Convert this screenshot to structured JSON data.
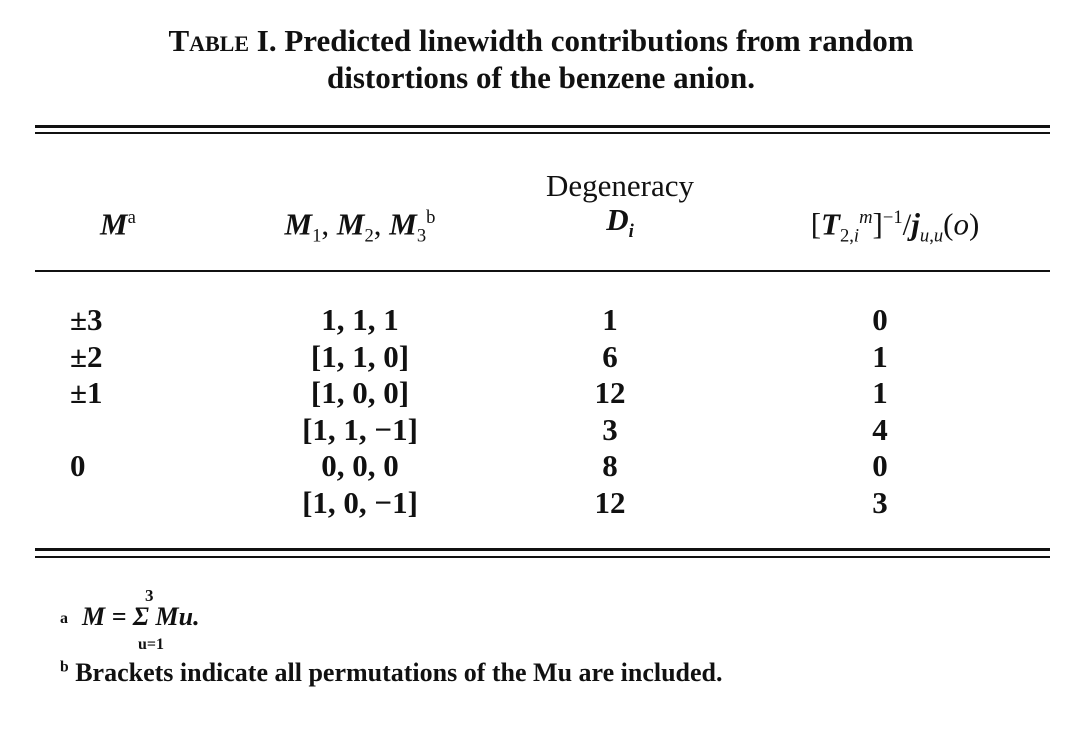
{
  "title": {
    "label": "Table I.",
    "line1": "Predicted linewidth contributions from random",
    "line2": "distortions of the benzene anion."
  },
  "headers": {
    "m": "M",
    "m_note": "a",
    "m123": "M1, M2, M3",
    "m123_note": "b",
    "degeneracy": "Degeneracy",
    "d": "Di",
    "t": "[T2,i^m]^-1/ju,u(o)"
  },
  "rows": [
    {
      "m": "±3",
      "m123": "1, 1, 1",
      "d": "1",
      "t": "0"
    },
    {
      "m": "±2",
      "m123": "[1, 1, 0]",
      "d": "6",
      "t": "1"
    },
    {
      "m": "±1",
      "m123": "[1, 0, 0]",
      "d": "12",
      "t": "1"
    },
    {
      "m": "",
      "m123": "[1, 1, −1]",
      "d": "3",
      "t": "4"
    },
    {
      "m": "0",
      "m123": "0, 0, 0",
      "d": "8",
      "t": "0"
    },
    {
      "m": "",
      "m123": "[1, 0, −1]",
      "d": "12",
      "t": "3"
    }
  ],
  "footnotes": {
    "a_mark": "a",
    "a_text": "M = Σ Mu.",
    "a_upper": "3",
    "a_lower": "u=1",
    "b_mark": "b",
    "b_text": "Brackets indicate all permutations of the Mu are included."
  }
}
